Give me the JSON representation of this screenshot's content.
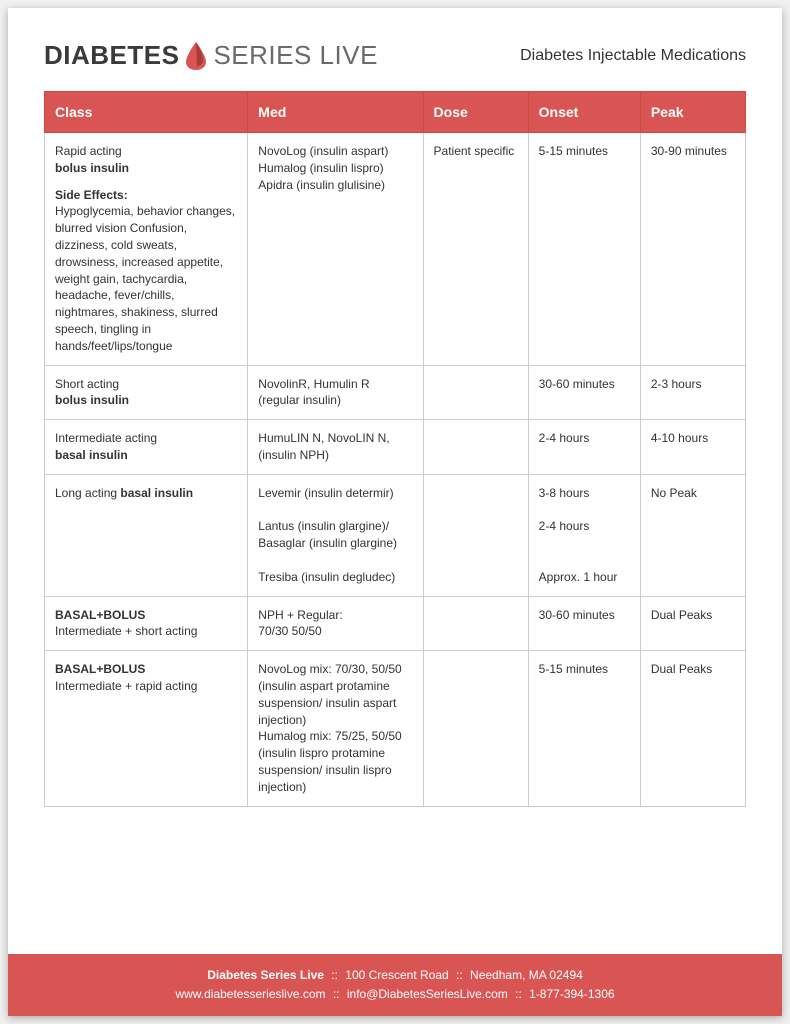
{
  "header": {
    "logo_diabetes": "DIABETES",
    "logo_series": "SERIES LIVE",
    "doc_title": "Diabetes Injectable Medications"
  },
  "table": {
    "columns": [
      "Class",
      "Med",
      "Dose",
      "Onset",
      "Peak"
    ],
    "header_bg": "#d95553",
    "header_color": "#ffffff",
    "border_color": "#cccccc",
    "rows": [
      {
        "class_prefix": "Rapid acting",
        "class_bold": "bolus insulin",
        "side_effects_label": "Side Effects:",
        "side_effects": "Hypoglycemia, behavior changes, blurred vision Confusion, dizziness, cold sweats, drowsiness, increased appetite, weight gain, tachycardia, headache, fever/chills, nightmares, shakiness, slurred speech, tingling in hands/feet/lips/tongue",
        "med": "NovoLog (insulin aspart)\nHumalog (insulin lispro)\nApidra (insulin glulisine)",
        "dose": "Patient specific",
        "onset": "5-15 minutes",
        "peak": "30-90 minutes"
      },
      {
        "class_prefix": "Short acting",
        "class_bold": "bolus insulin",
        "med": "NovolinR, Humulin R (regular insulin)",
        "dose": "",
        "onset": "30-60 minutes",
        "peak": "2-3 hours"
      },
      {
        "class_prefix": "Intermediate acting",
        "class_bold": "basal insulin",
        "med": "HumuLIN N, NovoLIN N, (insulin NPH)",
        "dose": "",
        "onset": "2-4 hours",
        "peak": "4-10 hours"
      },
      {
        "class_inline_prefix": "Long acting ",
        "class_inline_bold": "basal insulin",
        "med": "Levemir (insulin determir)\n\nLantus (insulin glargine)/ Basaglar (insulin glargine)\n\nTresiba (insulin degludec)",
        "dose": "",
        "onset": "3-8 hours\n\n2-4 hours\n\n\nApprox. 1 hour",
        "peak": "No Peak"
      },
      {
        "class_bold_first": "BASAL+BOLUS",
        "class_sub": "Intermediate + short acting",
        "med": "NPH + Regular:\n70/30 50/50",
        "dose": "",
        "onset": "30-60 minutes",
        "peak": "Dual Peaks"
      },
      {
        "class_bold_first": "BASAL+BOLUS",
        "class_sub": "Intermediate + rapid acting",
        "med": "NovoLog mix: 70/30, 50/50 (insulin aspart protamine suspension/ insulin aspart injection)\nHumalog mix: 75/25, 50/50 (insulin lispro protamine suspension/ insulin lispro injection)",
        "dose": "",
        "onset": "5-15 minutes",
        "peak": "Dual Peaks"
      }
    ]
  },
  "footer": {
    "org_name": "Diabetes Series Live",
    "address": "100 Crescent Road",
    "city": "Needham, MA 02494",
    "website": "www.diabetesserieslive.com",
    "email": "info@DiabetesSeriesLive.com",
    "phone": "1-877-394-1306",
    "separator": "::",
    "bg": "#d95553"
  }
}
